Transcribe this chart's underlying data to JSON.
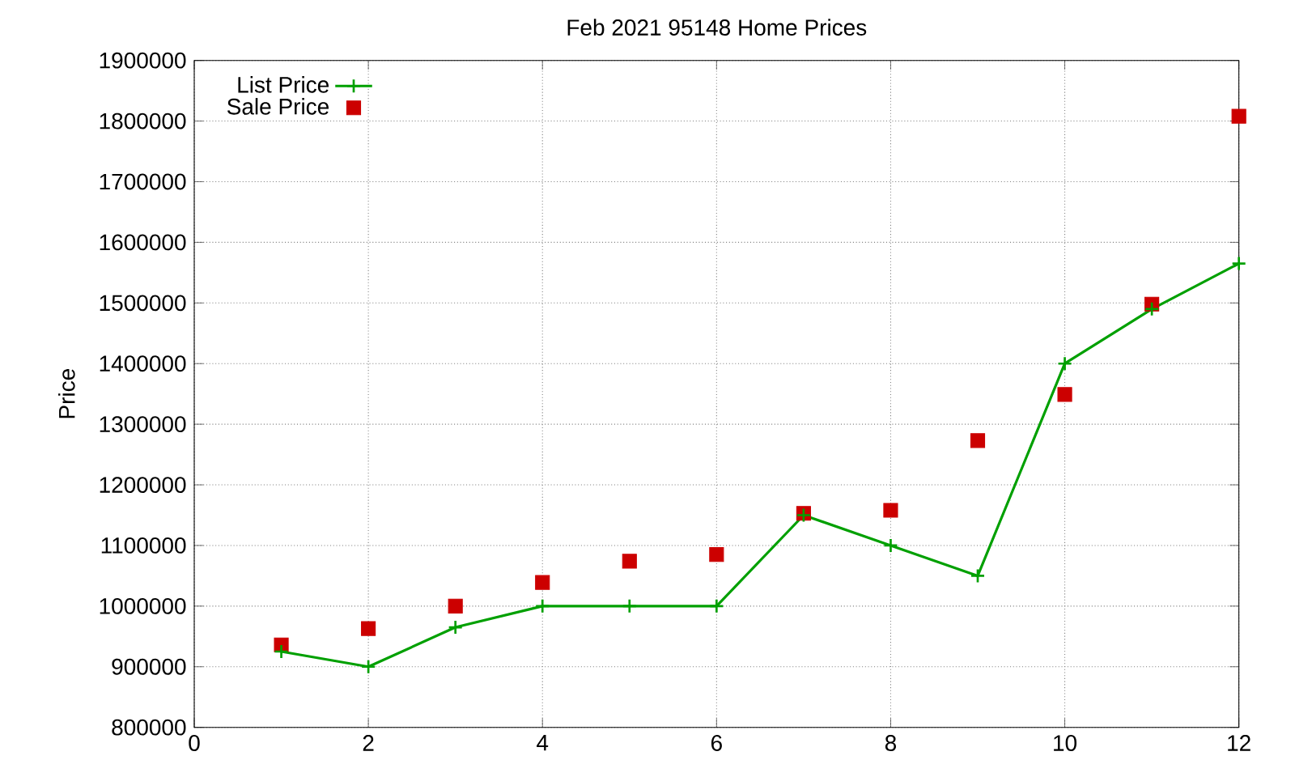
{
  "chart_data": {
    "type": "line",
    "title": "Feb 2021 95148 Home Prices",
    "ylabel": "Price",
    "x": [
      1,
      2,
      3,
      4,
      5,
      6,
      7,
      8,
      9,
      10,
      11,
      12
    ],
    "series": [
      {
        "name": "List Price",
        "color": "#00a000",
        "marker": "cross",
        "line_style": "solid",
        "values": [
          925000,
          900000,
          965000,
          1000000,
          1000000,
          1000000,
          1150000,
          1100000,
          1050000,
          1400000,
          1490000,
          1565000
        ]
      },
      {
        "name": "Sale Price",
        "type": "scatter",
        "color": "#cc0000",
        "marker": "square",
        "values": [
          936000,
          963000,
          1000000,
          1039000,
          1074000,
          1085000,
          1153000,
          1158000,
          1273000,
          1349000,
          1498000,
          1808000
        ]
      }
    ],
    "xlim": [
      0,
      12
    ],
    "xticks": [
      0,
      2,
      4,
      6,
      8,
      10,
      12
    ],
    "ylim": [
      800000,
      1900000
    ],
    "yticks": [
      800000,
      900000,
      1000000,
      1100000,
      1200000,
      1300000,
      1400000,
      1500000,
      1600000,
      1700000,
      1800000,
      1900000
    ],
    "grid": true,
    "legend": "top left"
  }
}
